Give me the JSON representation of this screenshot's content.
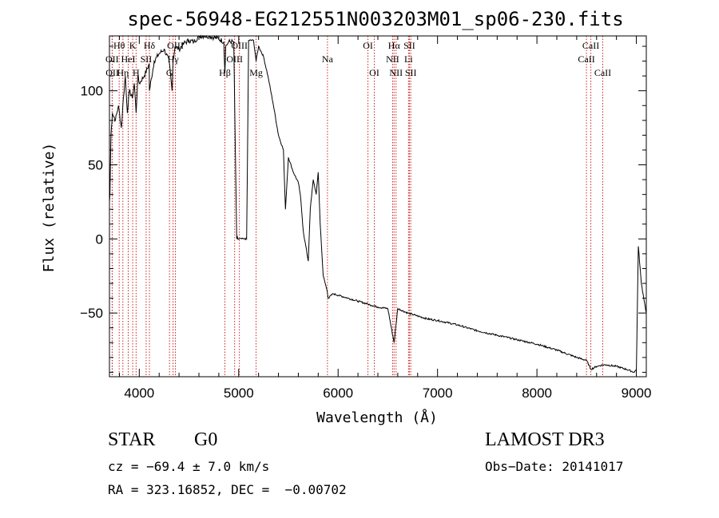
{
  "chart_data": {
    "type": "line",
    "title": "spec-56948-EG212551N003203M01_sp06-230.fits",
    "xlabel": "Wavelength (Å)",
    "ylabel": "Flux (relative)",
    "xlim": [
      3700,
      9100
    ],
    "ylim": [
      -93,
      137
    ],
    "x_ticks": [
      4000,
      5000,
      6000,
      7000,
      8000,
      9000
    ],
    "y_ticks": [
      -50,
      0,
      50,
      100
    ],
    "series": [
      {
        "name": "spectrum",
        "x": [
          3700,
          3705,
          3715,
          3730,
          3760,
          3790,
          3820,
          3840,
          3860,
          3880,
          3900,
          3930,
          3950,
          3968,
          3985,
          4000,
          4050,
          4100,
          4102,
          4150,
          4200,
          4250,
          4300,
          4330,
          4340,
          4360,
          4400,
          4450,
          4500,
          4550,
          4600,
          4650,
          4700,
          4750,
          4800,
          4850,
          4861,
          4870,
          4900,
          4950,
          4980,
          5000,
          5050,
          5080,
          5100,
          5150,
          5175,
          5200,
          5250,
          5300,
          5350,
          5400,
          5450,
          5470,
          5500,
          5550,
          5600,
          5620,
          5650,
          5700,
          5720,
          5750,
          5780,
          5800,
          5820,
          5850,
          5890,
          5900,
          5950,
          6000,
          6100,
          6200,
          6300,
          6400,
          6500,
          6563,
          6600,
          6700,
          6800,
          6900,
          7000,
          7200,
          7400,
          7600,
          7800,
          8000,
          8200,
          8400,
          8500,
          8542,
          8600,
          8662,
          8700,
          8800,
          8900,
          8980,
          9000,
          9020,
          9050,
          9100
        ],
        "y": [
          25,
          30,
          70,
          85,
          80,
          90,
          75,
          95,
          110,
          85,
          100,
          95,
          105,
          85,
          110,
          105,
          110,
          118,
          100,
          120,
          125,
          128,
          120,
          100,
          120,
          130,
          128,
          132,
          134,
          133,
          137,
          137,
          137,
          136,
          135,
          133,
          112,
          130,
          133,
          133,
          0,
          0,
          0,
          0,
          134,
          134,
          120,
          130,
          123,
          108,
          90,
          70,
          60,
          20,
          55,
          45,
          38,
          30,
          5,
          -15,
          20,
          40,
          30,
          45,
          10,
          -25,
          -35,
          -40,
          -37,
          -38,
          -40,
          -42,
          -44,
          -46,
          -47,
          -70,
          -47,
          -50,
          -52,
          -54,
          -55,
          -58,
          -62,
          -65,
          -68,
          -71,
          -75,
          -80,
          -82,
          -88,
          -86,
          -85,
          -85,
          -86,
          -88,
          -90,
          -88,
          -5,
          -30,
          -50
        ]
      }
    ],
    "spectral_lines": [
      {
        "label": "Hθ",
        "x": 3798,
        "row": 1
      },
      {
        "label": "K",
        "x": 3934,
        "row": 1
      },
      {
        "label": "Hδ",
        "x": 4102,
        "row": 1
      },
      {
        "label": "OIII",
        "x": 4363,
        "row": 1
      },
      {
        "label": "OIII",
        "x": 5007,
        "row": 1
      },
      {
        "label": "OI",
        "x": 6300,
        "row": 1
      },
      {
        "label": "Hα",
        "x": 6563,
        "row": 1
      },
      {
        "label": "SII",
        "x": 6717,
        "row": 1
      },
      {
        "label": "CaII",
        "x": 8542,
        "row": 1
      },
      {
        "label": "OII",
        "x": 3727,
        "row": 2
      },
      {
        "label": "HeI",
        "x": 3889,
        "row": 2
      },
      {
        "label": "SII",
        "x": 4069,
        "row": 2
      },
      {
        "label": "Hγ",
        "x": 4340,
        "row": 2
      },
      {
        "label": "OIII",
        "x": 4959,
        "row": 2
      },
      {
        "label": "Na",
        "x": 5893,
        "row": 2
      },
      {
        "label": "NII",
        "x": 6548,
        "row": 2
      },
      {
        "label": "Li",
        "x": 6708,
        "row": 2
      },
      {
        "label": "CaII",
        "x": 8498,
        "row": 2
      },
      {
        "label": "OII",
        "x": 3729,
        "row": 3
      },
      {
        "label": "Hη",
        "x": 3835,
        "row": 3
      },
      {
        "label": "H",
        "x": 3968,
        "row": 3
      },
      {
        "label": "G",
        "x": 4304,
        "row": 3
      },
      {
        "label": "Hβ",
        "x": 4861,
        "row": 3
      },
      {
        "label": "Mg",
        "x": 5175,
        "row": 3
      },
      {
        "label": "OI",
        "x": 6364,
        "row": 3
      },
      {
        "label": "NII",
        "x": 6583,
        "row": 3
      },
      {
        "label": "SII",
        "x": 6731,
        "row": 3
      },
      {
        "label": "CaII",
        "x": 8662,
        "row": 3
      }
    ]
  },
  "info": {
    "object_type": "STAR",
    "subclass": "G0",
    "survey": "LAMOST DR3",
    "cz": "cz = −69.4 ± 7.0 km/s",
    "obs_date": "Obs−Date: 20141017",
    "coords": "RA = 323.16852, DEC =  −0.00702"
  },
  "colors": {
    "spectrum": "#000000",
    "line_marker": "#cc2222",
    "axes": "#000000",
    "background": "#ffffff"
  }
}
